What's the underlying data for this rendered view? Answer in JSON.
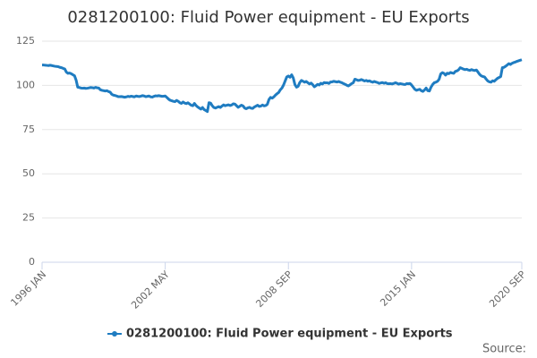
{
  "chart_data": {
    "type": "line",
    "title": "0281200100: Fluid Power equipment - EU Exports",
    "source": "Source:",
    "categories": [
      "1996 JAN",
      null,
      null,
      null,
      null,
      null,
      null,
      null,
      null,
      null,
      null,
      null,
      null,
      null,
      null,
      null,
      null,
      null,
      null,
      null,
      null,
      null,
      null,
      null,
      null,
      null,
      null,
      null,
      null,
      null,
      null,
      null,
      null,
      null,
      null,
      null,
      null,
      null,
      null,
      null,
      null,
      null,
      null,
      null,
      null,
      null,
      null,
      null,
      null,
      null,
      null,
      null,
      null,
      null,
      null,
      null,
      null,
      null,
      null,
      null,
      null,
      null,
      null,
      null,
      null,
      null,
      null,
      null,
      null,
      null,
      null,
      null,
      null,
      null,
      null,
      null,
      "2002 MAY",
      null,
      null,
      null,
      null,
      null,
      null,
      null,
      null,
      null,
      null,
      null,
      null,
      null,
      null,
      null,
      null,
      null,
      null,
      null,
      null,
      null,
      null,
      null,
      null,
      null,
      null,
      null,
      null,
      null,
      null,
      null,
      null,
      null,
      null,
      null,
      null,
      null,
      null,
      null,
      null,
      null,
      null,
      null,
      null,
      null,
      null,
      null,
      null,
      null,
      null,
      null,
      null,
      null,
      null,
      null,
      null,
      null,
      null,
      null,
      null,
      null,
      null,
      null,
      null,
      null,
      null,
      null,
      null,
      null,
      null,
      null,
      null,
      null,
      null,
      null,
      "2008 SEP",
      null,
      null,
      null,
      null,
      null,
      null,
      null,
      null,
      null,
      null,
      null,
      null,
      null,
      null,
      null,
      null,
      null,
      null,
      null,
      null,
      null,
      null,
      null,
      null,
      null,
      null,
      null,
      null,
      null,
      null,
      null,
      null,
      null,
      null,
      null,
      null,
      null,
      null,
      null,
      null,
      null,
      null,
      null,
      null,
      null,
      null,
      null,
      null,
      null,
      null,
      null,
      null,
      null,
      null,
      null,
      null,
      null,
      null,
      null,
      null,
      null,
      null,
      null,
      null,
      null,
      null,
      null,
      null,
      null,
      null,
      null,
      null,
      null,
      null,
      null,
      "2015 JAN",
      null,
      null,
      null,
      null,
      null,
      null,
      null,
      null,
      null,
      null,
      null,
      null,
      null,
      null,
      null,
      null,
      null,
      null,
      null,
      null,
      null,
      null,
      null,
      null,
      null,
      null,
      null,
      null,
      null,
      null,
      null,
      null,
      null,
      null,
      null,
      null,
      null,
      null,
      null,
      null,
      null,
      null,
      null,
      null,
      null,
      null,
      null,
      null,
      null,
      null,
      null,
      null,
      null,
      null,
      null,
      null,
      null,
      null,
      null,
      null,
      null,
      null,
      null,
      null,
      null,
      null,
      null,
      "2020 SEP"
    ],
    "series": [
      {
        "name": "0281200100: Fluid Power equipment - EU Exports",
        "color": "#1f7cc1",
        "values": [
          111.5,
          111.5,
          111.4,
          111.3,
          111.2,
          111.4,
          111.2,
          111,
          110.8,
          110.7,
          110.6,
          110.2,
          110,
          109.6,
          109.3,
          107.5,
          106.8,
          107,
          106.6,
          106,
          105.5,
          103,
          99,
          98.8,
          98.5,
          98.4,
          98.5,
          98.3,
          98.4,
          98.6,
          98.8,
          98.7,
          98.5,
          98.9,
          98.6,
          98.5,
          97.5,
          97.2,
          97,
          96.8,
          97,
          96.5,
          96.2,
          95,
          94.5,
          94.3,
          94,
          93.6,
          93.6,
          93.7,
          93.5,
          93.3,
          93.5,
          93.8,
          93.6,
          93.9,
          93.7,
          93.5,
          94,
          93.8,
          93.7,
          93.9,
          94.2,
          94,
          93.6,
          93.8,
          94,
          93.5,
          93.4,
          93.8,
          94.1,
          94,
          94.2,
          94,
          93.8,
          93.9,
          94,
          93.2,
          92.3,
          91.6,
          91.3,
          91,
          90.8,
          91.5,
          91,
          90.2,
          89.8,
          90.6,
          90,
          89.7,
          90.2,
          89.5,
          88.8,
          88.5,
          89.8,
          88.6,
          87.8,
          87.2,
          86.6,
          87.5,
          86.3,
          85.8,
          85.2,
          90.2,
          90,
          88.5,
          87.5,
          87.2,
          87.6,
          88,
          87.5,
          88.3,
          89,
          88.5,
          88.8,
          89,
          88.6,
          88.9,
          89.6,
          89.4,
          88.5,
          87.6,
          88.2,
          88.8,
          88.4,
          87.2,
          86.8,
          87.3,
          87.6,
          87.1,
          87,
          87.8,
          88.3,
          88.8,
          88.1,
          88.3,
          88.9,
          88.4,
          88.6,
          89.3,
          92,
          93.2,
          92.8,
          93.5,
          94.5,
          95.3,
          96,
          97.5,
          98.5,
          100.2,
          102.5,
          104.8,
          105.3,
          104.6,
          106,
          104.2,
          100.5,
          99,
          99.5,
          101.6,
          102.8,
          102.3,
          101.8,
          102.2,
          101.5,
          100.8,
          101.3,
          100.4,
          99.2,
          99.8,
          100.6,
          100.2,
          101.2,
          100.8,
          101.6,
          101.4,
          101.5,
          101.1,
          101.9,
          102,
          102.3,
          102.1,
          101.9,
          102.2,
          101.8,
          101.5,
          101,
          100.6,
          100.1,
          99.7,
          100.3,
          101,
          101.5,
          103.5,
          103.2,
          102.8,
          102.9,
          103.3,
          102.9,
          102.5,
          102.8,
          102.3,
          102.6,
          102.1,
          101.8,
          102.2,
          101.9,
          101.6,
          101.1,
          101.4,
          101.6,
          101.2,
          101.5,
          101,
          100.9,
          101,
          100.8,
          101.1,
          101.5,
          101.2,
          100.7,
          101,
          100.8,
          100.6,
          100.5,
          101,
          100.9,
          101.1,
          100.2,
          99,
          97.8,
          97.2,
          97.5,
          97.8,
          97,
          96.6,
          97.4,
          98.5,
          97,
          96.8,
          99,
          100.5,
          101.5,
          101.8,
          102.3,
          103.5,
          106.5,
          107.2,
          106.8,
          105.8,
          106.9,
          106.6,
          107.3,
          107,
          106.8,
          107.9,
          108.2,
          108.8,
          110,
          109.6,
          109.2,
          108.9,
          109.1,
          108.7,
          108.5,
          108.9,
          108.6,
          108.4,
          108.7,
          107.5,
          106.2,
          105.4,
          105,
          104.8,
          103.6,
          102.5,
          102,
          101.8,
          102.6,
          102.3,
          103.2,
          104,
          104.5,
          105,
          110,
          110.2,
          110.8,
          111.5,
          112.3,
          111.8,
          112.5,
          112.9,
          113.2,
          113.6,
          113.9,
          114.2,
          114.5
        ]
      }
    ],
    "ylim": [
      0,
      125
    ],
    "yticks": [
      0,
      25,
      50,
      75,
      100,
      125
    ],
    "grid": true
  }
}
